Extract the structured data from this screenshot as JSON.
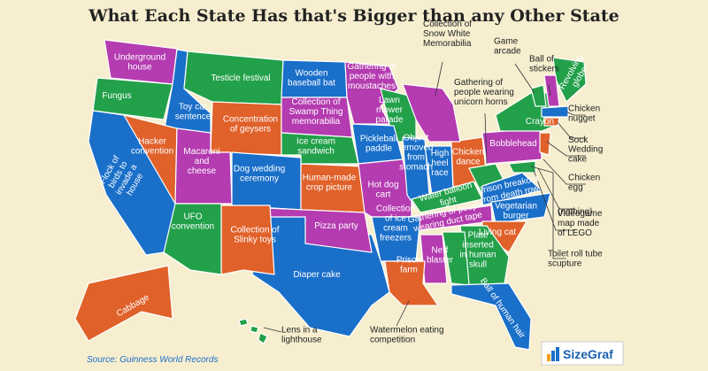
{
  "title": "What Each State Has that's Bigger than any Other State",
  "labels": [
    {
      "lines": [
        "Underground",
        "house"
      ]
    },
    {
      "lines": [
        "Fungus"
      ]
    },
    {
      "lines": [
        "Testicle festival"
      ]
    },
    {
      "lines": [
        "Wooden",
        "baseball bat"
      ]
    },
    {
      "lines": [
        "Gathering of",
        "people with",
        "moustaches"
      ]
    },
    {
      "lines": [
        "Toy car",
        "sentence"
      ]
    },
    {
      "lines": [
        "Concentration",
        "of geysers"
      ]
    },
    {
      "lines": [
        "Collection of",
        "Swamp Thing",
        "memorabilia"
      ]
    },
    {
      "lines": [
        "Lawn",
        "mower",
        "parade"
      ]
    },
    {
      "lines": [
        "Hacker",
        "convention"
      ]
    },
    {
      "lines": [
        "Ice cream",
        "sandwich"
      ]
    },
    {
      "lines": [
        "Pickleball",
        "paddle"
      ]
    },
    {
      "lines": [
        "Macaroni",
        "and",
        "cheese"
      ]
    },
    {
      "lines": [
        "Dog wedding",
        "ceremony"
      ]
    },
    {
      "lines": [
        "Human-made",
        "crop picture"
      ]
    },
    {
      "lines": [
        "Object",
        "removed",
        "from",
        "stomach"
      ]
    },
    {
      "lines": [
        "High",
        "heel",
        "race"
      ]
    },
    {
      "lines": [
        "Chicken",
        "dance"
      ]
    },
    {
      "lines": [
        "Bobblehead"
      ]
    },
    {
      "lines": [
        "Crayon"
      ]
    },
    {
      "lines": [
        "Flock of",
        "birds to",
        "invade a",
        "house"
      ]
    },
    {
      "lines": [
        "Hot dog",
        "cart"
      ]
    },
    {
      "lines": [
        "Water balloon",
        "fight"
      ]
    },
    {
      "lines": [
        "Prison breakout",
        "from death row"
      ]
    },
    {
      "lines": [
        "Vegetarian",
        "burger"
      ]
    },
    {
      "lines": [
        "Gathering of people",
        "wearing duct tape"
      ]
    },
    {
      "lines": [
        "UFO",
        "convention"
      ]
    },
    {
      "lines": [
        "Collection of",
        "Slinky toys"
      ]
    },
    {
      "lines": [
        "Pizza party"
      ]
    },
    {
      "lines": [
        "Collection",
        "of ice",
        "cream",
        "freezers"
      ]
    },
    {
      "lines": [
        "Living cat"
      ]
    },
    {
      "lines": [
        "Nerf",
        "blaster"
      ]
    },
    {
      "lines": [
        "Plate",
        "inserted",
        "in human",
        "skull"
      ]
    },
    {
      "lines": [
        "Diaper cake"
      ]
    },
    {
      "lines": [
        "Prison",
        "farm"
      ]
    },
    {
      "lines": [
        "Ball of human hair"
      ]
    },
    {
      "lines": [
        "Cabbage"
      ]
    },
    {
      "lines": [
        "Revolving",
        "globe"
      ]
    },
    {
      "lines": [
        "Collection of",
        "Snow White",
        "Memorabilia"
      ]
    },
    {
      "lines": [
        "Gathering of",
        "people wearing",
        "unicorn horns"
      ]
    },
    {
      "lines": [
        "Game",
        "arcade"
      ]
    },
    {
      "lines": [
        "Ball of",
        "stickers"
      ]
    },
    {
      "lines": [
        "Chicken",
        "nugget"
      ]
    },
    {
      "lines": [
        "Sock"
      ]
    },
    {
      "lines": [
        "Wedding",
        "cake"
      ]
    },
    {
      "lines": [
        "Chicken",
        "egg"
      ]
    },
    {
      "lines": [
        "(nothing)"
      ]
    },
    {
      "lines": [
        "Videogame",
        "map made",
        "of LEGO"
      ]
    },
    {
      "lines": [
        "Toilet roll tube",
        "scupture"
      ]
    },
    {
      "lines": [
        "Lens in a",
        "lighthouse"
      ]
    },
    {
      "lines": [
        "Watermelon eating",
        "competition"
      ]
    }
  ],
  "source": "Source: Guinness World Records",
  "logo": "SizeGraf"
}
